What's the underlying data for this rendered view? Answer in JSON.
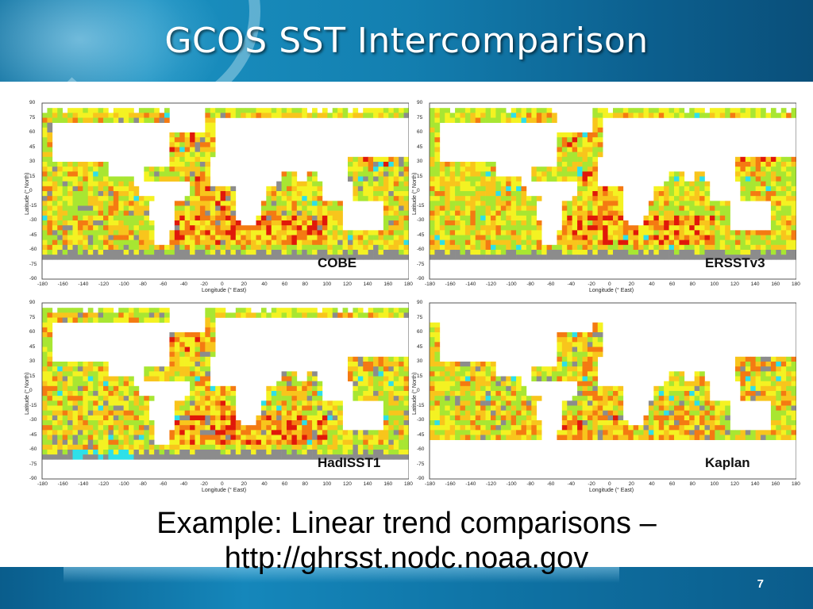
{
  "slide": {
    "title": "GCOS SST Intercomparison",
    "caption_line1": "Example: Linear trend comparisons –",
    "caption_line2": "http://ghrsst.nodc.noaa.gov",
    "page_number": "7"
  },
  "axes": {
    "ylabel": "Latitude (° North)",
    "xlabel": "Longitude (° East)",
    "lat_ticks": [
      "90",
      "75",
      "60",
      "45",
      "30",
      "15",
      "0",
      "-15",
      "-30",
      "-45",
      "-60",
      "-75",
      "-90"
    ],
    "lon_ticks": [
      "-180",
      "-160",
      "-140",
      "-120",
      "-100",
      "-80",
      "-60",
      "-40",
      "-20",
      "0",
      "20",
      "40",
      "60",
      "80",
      "100",
      "120",
      "140",
      "160",
      "180"
    ]
  },
  "panels": [
    {
      "label": "COBE"
    },
    {
      "label": "ERSSTv3"
    },
    {
      "label": "HadISST1"
    },
    {
      "label": "Kaplan"
    }
  ],
  "colors": {
    "red": "#e0180a",
    "orange": "#f47a12",
    "yellow_orange": "#f8c51c",
    "yellow": "#f4f222",
    "green": "#a8e632",
    "cyan": "#2ee0e8",
    "gray": "#8c8c8c"
  }
}
